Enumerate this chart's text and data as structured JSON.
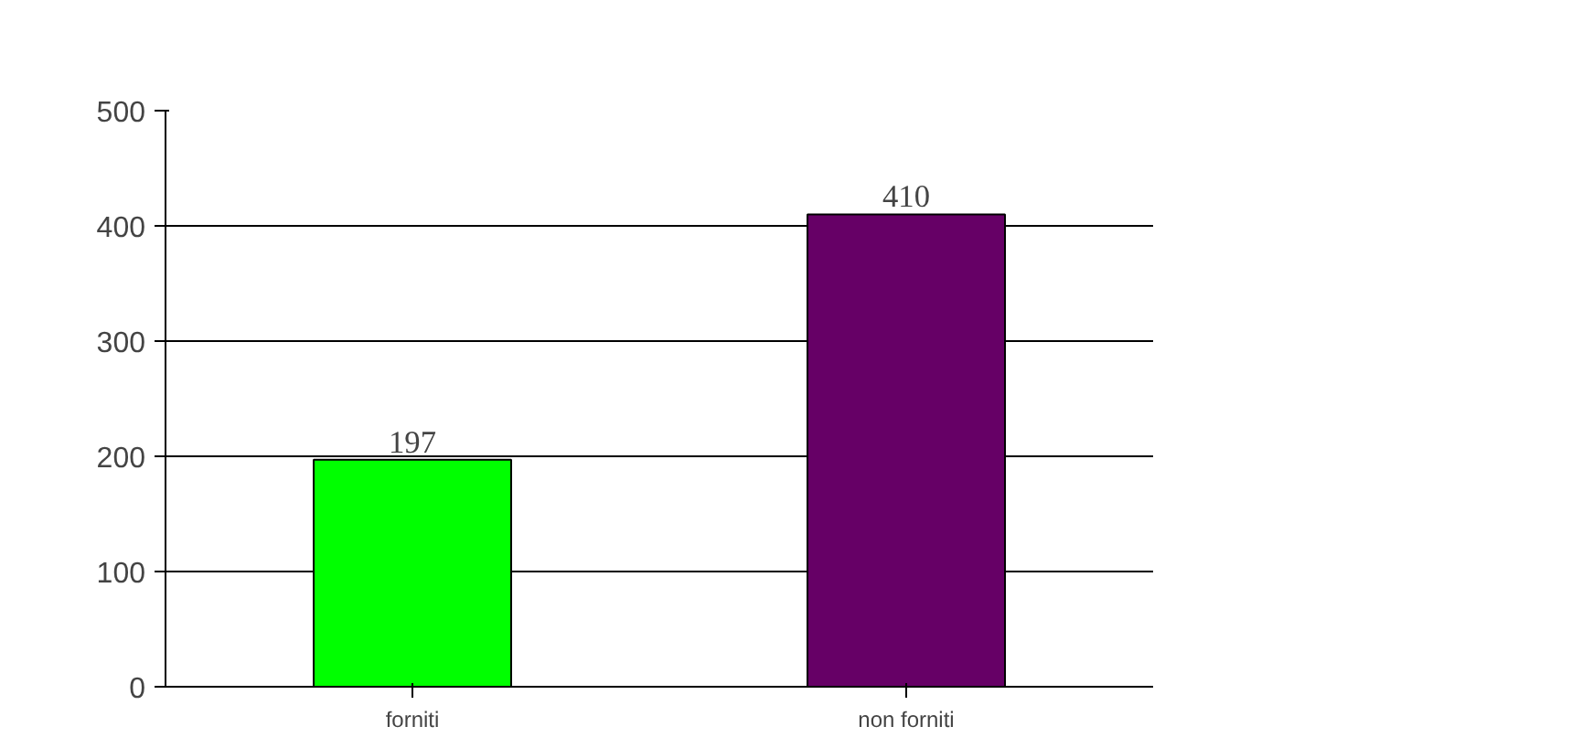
{
  "chart_data": {
    "type": "bar",
    "categories": [
      "forniti",
      "non forniti"
    ],
    "values": [
      197,
      410
    ],
    "colors": [
      "#00ff00",
      "#660066"
    ],
    "ylim": [
      0,
      500
    ],
    "yticks": [
      0,
      100,
      200,
      300,
      400,
      500
    ],
    "grid": "y",
    "data_labels": true
  }
}
